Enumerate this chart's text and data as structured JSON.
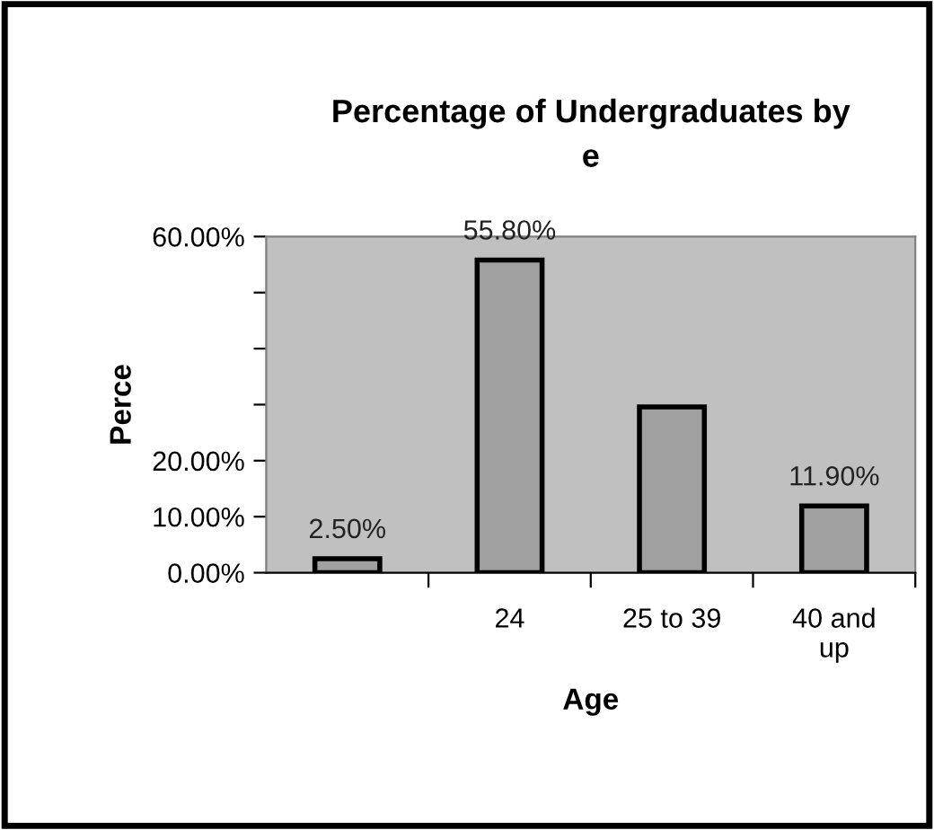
{
  "chart_data": {
    "type": "bar",
    "title": "Percentage of Undergraduates by\ne",
    "xlabel": "Age",
    "ylabel": "Perce",
    "categories": [
      null,
      "24",
      "25 to 39",
      "40 and\nup"
    ],
    "values": [
      2.5,
      55.8,
      29.6,
      11.9
    ],
    "value_labels": [
      "2.50%",
      "55.80%",
      null,
      "11.90%"
    ],
    "color": "#a0a0a0",
    "ylim": [
      0,
      60
    ],
    "yticks": [
      {
        "value": 0,
        "label": "0.00%"
      },
      {
        "value": 10,
        "label": "10.00%"
      },
      {
        "value": 20,
        "label": "20.00%"
      },
      {
        "value": 30,
        "label": null
      },
      {
        "value": 40,
        "label": null
      },
      {
        "value": 50,
        "label": null
      },
      {
        "value": 60,
        "label": "60.00%"
      }
    ],
    "grid": false,
    "legend": false
  }
}
